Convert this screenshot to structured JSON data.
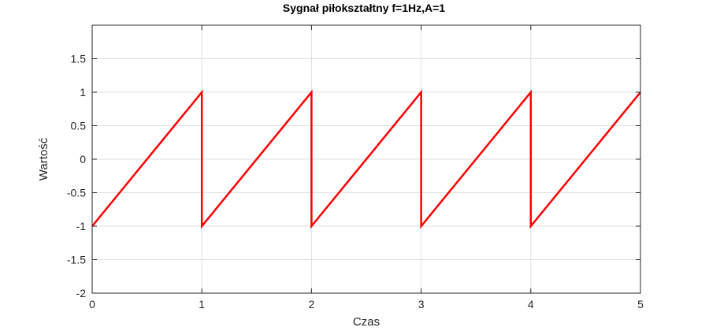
{
  "chart_data": {
    "type": "line",
    "title": "Sygnał piłokształtny f=1Hz,A=1",
    "xlabel": "Czas",
    "ylabel": "Wartość",
    "xlim": [
      0,
      5
    ],
    "ylim": [
      -2,
      2
    ],
    "grid": true,
    "legend": "none",
    "x_ticks": [
      0,
      1,
      2,
      3,
      4,
      5
    ],
    "x_tick_labels": [
      "0",
      "1",
      "2",
      "3",
      "4",
      "5"
    ],
    "y_ticks": [
      -2,
      -1.5,
      -1,
      -0.5,
      0,
      0.5,
      1,
      1.5
    ],
    "y_tick_labels": [
      "-2",
      "-1.5",
      "-1",
      "-0.5",
      "0",
      "0.5",
      "1",
      "1.5"
    ],
    "series": [
      {
        "color": "#ff0000",
        "x": [
          0,
          1,
          1,
          2,
          2,
          3,
          3,
          4,
          4,
          5
        ],
        "y": [
          -1,
          1,
          -1,
          1,
          -1,
          1,
          -1,
          1,
          -1,
          1
        ]
      }
    ]
  },
  "colors": {
    "axis": "#262626",
    "grid": "#dfdfdf",
    "series": "#ff0000",
    "background": "#ffffff"
  }
}
